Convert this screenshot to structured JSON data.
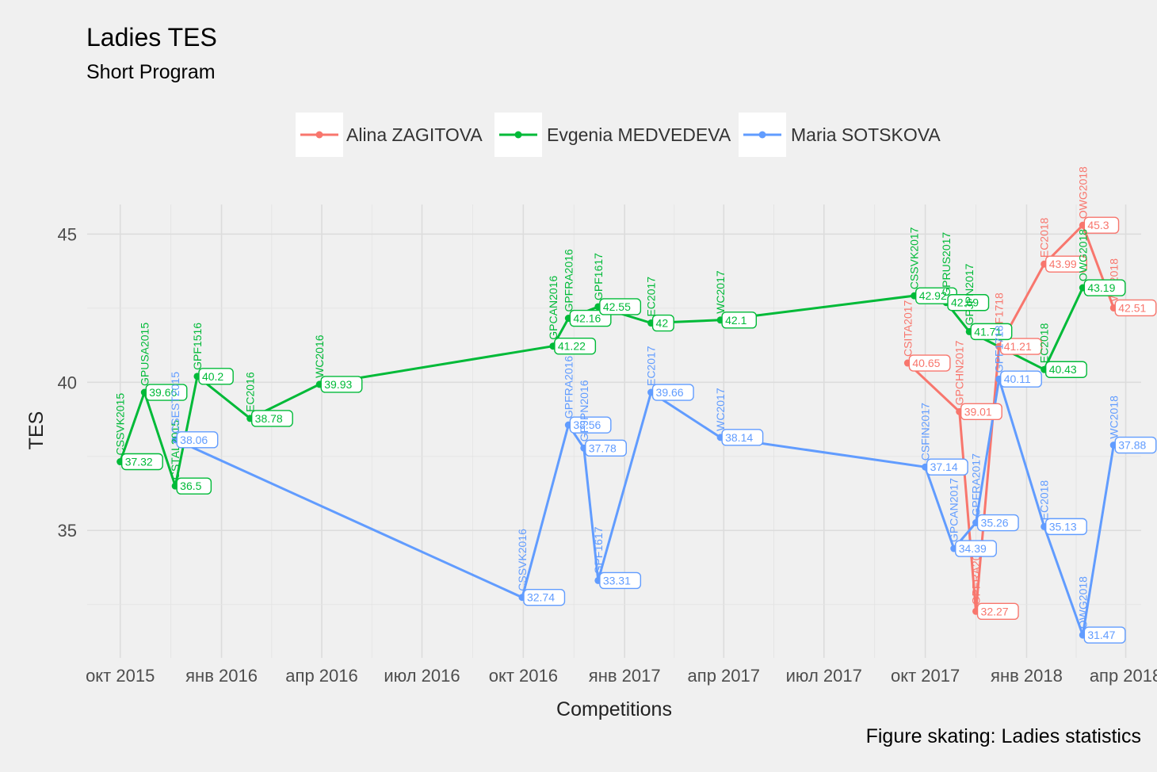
{
  "chart_data": {
    "type": "line",
    "title": "Ladies TES",
    "subtitle": "Short Program",
    "xlabel": "Competitions",
    "ylabel": "TES",
    "caption": "Figure skating: Ladies statistics",
    "x_ticks": [
      "окт 2015",
      "янв 2016",
      "апр 2016",
      "июл 2016",
      "окт 2016",
      "янв 2017",
      "апр 2017",
      "июл 2017",
      "окт 2017",
      "янв 2018",
      "апр 2018"
    ],
    "x_tick_dates": [
      "2015-10-01",
      "2016-01-01",
      "2016-04-01",
      "2016-07-01",
      "2016-10-01",
      "2017-01-01",
      "2017-04-01",
      "2017-07-01",
      "2017-10-01",
      "2018-01-01",
      "2018-04-01"
    ],
    "y_ticks": [
      35,
      40,
      45
    ],
    "ylim": [
      30.7,
      46
    ],
    "xlim": [
      "2015-09-01",
      "2018-04-15"
    ],
    "grid": true,
    "legend_position": "top",
    "series": [
      {
        "name": "Alina ZAGITOVA",
        "color": "#F8766D",
        "points": [
          {
            "x": "2017-09-15",
            "y": 40.65,
            "label": "CSITA2017"
          },
          {
            "x": "2017-11-01",
            "y": 39.01,
            "label": "GPCHN2017"
          },
          {
            "x": "2017-11-16",
            "y": 32.27,
            "label": "GPFRA2017"
          },
          {
            "x": "2017-12-07",
            "y": 41.21,
            "label": "GPF1718"
          },
          {
            "x": "2018-01-17",
            "y": 43.99,
            "label": "EC2018"
          },
          {
            "x": "2018-02-21",
            "y": 45.3,
            "label": "OWG2018"
          },
          {
            "x": "2018-03-21",
            "y": 42.51,
            "label": "WC2018"
          }
        ]
      },
      {
        "name": "Evgenia MEDVEDEVA",
        "color": "#00BA38",
        "points": [
          {
            "x": "2015-10-01",
            "y": 37.32,
            "label": "CSSVK2015"
          },
          {
            "x": "2015-10-23",
            "y": 39.66,
            "label": "GPUSA2015"
          },
          {
            "x": "2015-11-20",
            "y": 36.5,
            "label": "CSTAL2015"
          },
          {
            "x": "2015-12-10",
            "y": 40.2,
            "label": "GPF1516"
          },
          {
            "x": "2016-01-27",
            "y": 38.78,
            "label": "EC2016"
          },
          {
            "x": "2016-03-30",
            "y": 39.93,
            "label": "WC2016"
          },
          {
            "x": "2016-10-28",
            "y": 41.22,
            "label": "GPCAN2016"
          },
          {
            "x": "2016-11-11",
            "y": 42.16,
            "label": "GPFRA2016"
          },
          {
            "x": "2016-12-08",
            "y": 42.55,
            "label": "GPF1617"
          },
          {
            "x": "2017-01-25",
            "y": 42,
            "label": "EC2017"
          },
          {
            "x": "2017-03-29",
            "y": 42.1,
            "label": "WC2017"
          },
          {
            "x": "2017-09-21",
            "y": 42.92,
            "label": "CSSVK2017"
          },
          {
            "x": "2017-10-20",
            "y": 42.69,
            "label": "GPRUS2017"
          },
          {
            "x": "2017-11-10",
            "y": 41.71,
            "label": "GPJPN2017"
          },
          {
            "x": "2018-01-17",
            "y": 40.43,
            "label": "EC2018"
          },
          {
            "x": "2018-02-21",
            "y": 43.19,
            "label": "OWG2018"
          }
        ]
      },
      {
        "name": "Maria SOTSKOVA",
        "color": "#619CFF",
        "points": [
          {
            "x": "2015-11-20",
            "y": 38.06,
            "label": "CSEST2015"
          },
          {
            "x": "2016-09-30",
            "y": 32.74,
            "label": "CSSVK2016"
          },
          {
            "x": "2016-11-11",
            "y": 38.56,
            "label": "GPFRA2016"
          },
          {
            "x": "2016-11-25",
            "y": 37.78,
            "label": "GPJPN2016"
          },
          {
            "x": "2016-12-08",
            "y": 33.31,
            "label": "GPF1617"
          },
          {
            "x": "2017-01-25",
            "y": 39.66,
            "label": "EC2017"
          },
          {
            "x": "2017-03-29",
            "y": 38.14,
            "label": "WC2017"
          },
          {
            "x": "2017-10-01",
            "y": 37.14,
            "label": "CSFIN2017"
          },
          {
            "x": "2017-10-27",
            "y": 34.39,
            "label": "GPCAN2017"
          },
          {
            "x": "2017-11-16",
            "y": 35.26,
            "label": "GPFRA2017"
          },
          {
            "x": "2017-12-07",
            "y": 40.11,
            "label": "GPF1718"
          },
          {
            "x": "2018-01-17",
            "y": 35.13,
            "label": "EC2018"
          },
          {
            "x": "2018-02-21",
            "y": 31.47,
            "label": "OWG2018"
          },
          {
            "x": "2018-03-21",
            "y": 37.88,
            "label": "WC2018"
          }
        ]
      }
    ]
  }
}
